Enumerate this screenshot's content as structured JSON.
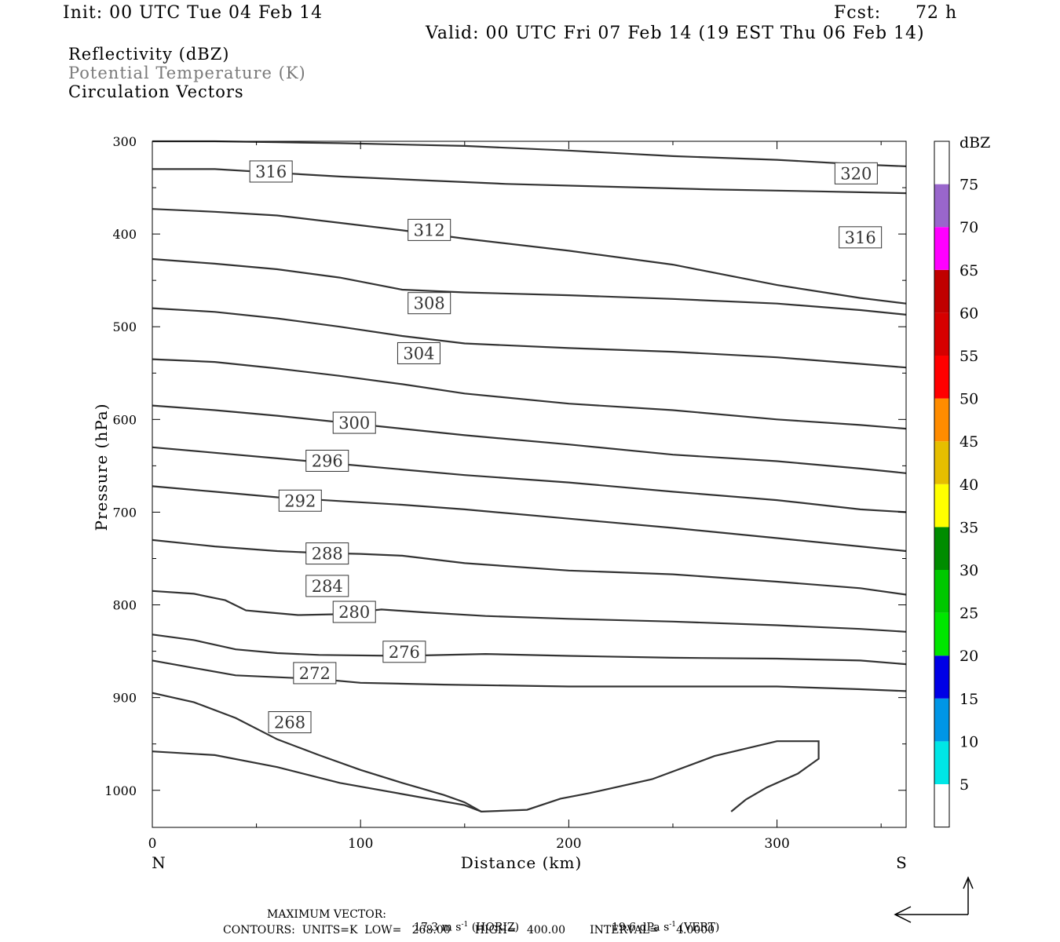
{
  "header": {
    "init": "Init: 00 UTC Tue 04 Feb 14",
    "fcst_label": "Fcst:",
    "fcst_value": "72 h",
    "valid": "Valid: 00 UTC Fri 07 Feb 14 (19 EST Thu 06 Feb 14)"
  },
  "fields": {
    "line1": "Reflectivity (dBZ)",
    "line2": "Potential Temperature (K)",
    "line3": "Circulation Vectors"
  },
  "footer": {
    "max_vector_label": "MAXIMUM VECTOR:",
    "horiz_value": "17.3 m s",
    "horiz_exp": "-1",
    "horiz_tag": "(HORIZ)",
    "vert_value": "19.6 dPa s",
    "vert_exp": "-1",
    "vert_tag": "(VERT)",
    "contours": "CONTOURS:  UNITS=K  LOW=   268.00       HIGH=   400.00       INTERVAL=     4.0000"
  },
  "chart_data": {
    "type": "cross-section contour",
    "xlabel": "Distance (km)",
    "ylabel": "Pressure (hPa)",
    "x_end_labels": {
      "left": "N",
      "right": "S"
    },
    "xlim": [
      0,
      362
    ],
    "ylim_hPa": [
      300,
      1040
    ],
    "x_ticks": [
      0,
      100,
      200,
      300
    ],
    "y_ticks": [
      300,
      400,
      500,
      600,
      700,
      800,
      900,
      1000
    ],
    "isentropes": [
      {
        "theta": 268,
        "label_at": [
          66,
          927
        ],
        "points": [
          [
            0,
            958
          ],
          [
            30,
            962
          ],
          [
            60,
            975
          ],
          [
            90,
            992
          ],
          [
            120,
            1004
          ],
          [
            150,
            1016
          ],
          [
            158,
            1023
          ]
        ]
      },
      {
        "theta": 272,
        "label_at": [
          78,
          874
        ],
        "points": [
          [
            0,
            895
          ],
          [
            20,
            905
          ],
          [
            40,
            922
          ],
          [
            60,
            945
          ],
          [
            80,
            962
          ],
          [
            100,
            978
          ],
          [
            120,
            992
          ],
          [
            140,
            1005
          ],
          [
            150,
            1013
          ],
          [
            158,
            1023
          ],
          [
            180,
            1021
          ],
          [
            196,
            1009
          ],
          [
            210,
            1003
          ],
          [
            240,
            988
          ],
          [
            270,
            963
          ],
          [
            300,
            947
          ],
          [
            320,
            947
          ],
          [
            320,
            966
          ],
          [
            310,
            982
          ],
          [
            295,
            997
          ],
          [
            285,
            1010
          ],
          [
            278,
            1023
          ]
        ]
      },
      {
        "theta": 276,
        "label_at": [
          121,
          851
        ],
        "points": [
          [
            0,
            860
          ],
          [
            20,
            868
          ],
          [
            40,
            876
          ],
          [
            60,
            878
          ],
          [
            80,
            880
          ],
          [
            100,
            884
          ],
          [
            140,
            886
          ],
          [
            200,
            888
          ],
          [
            260,
            888
          ],
          [
            300,
            888
          ],
          [
            340,
            891
          ],
          [
            362,
            893
          ]
        ]
      },
      {
        "theta": 280,
        "label_at": [
          97,
          808
        ],
        "points": [
          [
            0,
            832
          ],
          [
            20,
            838
          ],
          [
            40,
            848
          ],
          [
            60,
            852
          ],
          [
            80,
            854
          ],
          [
            120,
            855
          ],
          [
            160,
            853
          ],
          [
            200,
            855
          ],
          [
            250,
            857
          ],
          [
            300,
            858
          ],
          [
            340,
            860
          ],
          [
            362,
            864
          ]
        ]
      },
      {
        "theta": 284,
        "label_at": [
          84,
          780
        ],
        "points": [
          [
            0,
            785
          ],
          [
            20,
            788
          ],
          [
            35,
            795
          ],
          [
            45,
            806
          ],
          [
            55,
            808
          ],
          [
            70,
            811
          ],
          [
            90,
            810
          ],
          [
            110,
            805
          ],
          [
            130,
            808
          ],
          [
            160,
            812
          ],
          [
            200,
            815
          ],
          [
            250,
            818
          ],
          [
            300,
            822
          ],
          [
            340,
            826
          ],
          [
            362,
            829
          ]
        ]
      },
      {
        "theta": 288,
        "label_at": [
          84,
          745
        ],
        "points": [
          [
            0,
            730
          ],
          [
            30,
            737
          ],
          [
            60,
            742
          ],
          [
            80,
            744
          ],
          [
            100,
            745
          ],
          [
            120,
            747
          ],
          [
            150,
            755
          ],
          [
            200,
            763
          ],
          [
            250,
            767
          ],
          [
            300,
            775
          ],
          [
            340,
            782
          ],
          [
            362,
            789
          ]
        ]
      },
      {
        "theta": 292,
        "label_at": [
          71,
          688
        ],
        "points": [
          [
            0,
            672
          ],
          [
            30,
            678
          ],
          [
            60,
            684
          ],
          [
            90,
            688
          ],
          [
            120,
            692
          ],
          [
            150,
            697
          ],
          [
            200,
            707
          ],
          [
            250,
            717
          ],
          [
            300,
            728
          ],
          [
            340,
            737
          ],
          [
            362,
            742
          ]
        ]
      },
      {
        "theta": 296,
        "label_at": [
          84,
          645
        ],
        "points": [
          [
            0,
            630
          ],
          [
            30,
            636
          ],
          [
            60,
            642
          ],
          [
            90,
            648
          ],
          [
            120,
            654
          ],
          [
            150,
            660
          ],
          [
            200,
            668
          ],
          [
            250,
            678
          ],
          [
            300,
            687
          ],
          [
            340,
            697
          ],
          [
            362,
            700
          ]
        ]
      },
      {
        "theta": 300,
        "label_at": [
          97,
          604
        ],
        "points": [
          [
            0,
            585
          ],
          [
            30,
            590
          ],
          [
            60,
            596
          ],
          [
            90,
            603
          ],
          [
            120,
            610
          ],
          [
            150,
            617
          ],
          [
            200,
            627
          ],
          [
            250,
            638
          ],
          [
            300,
            645
          ],
          [
            340,
            653
          ],
          [
            362,
            658
          ]
        ]
      },
      {
        "theta": 304,
        "label_at": [
          128,
          529
        ],
        "points": [
          [
            0,
            535
          ],
          [
            30,
            538
          ],
          [
            60,
            545
          ],
          [
            90,
            553
          ],
          [
            120,
            562
          ],
          [
            150,
            572
          ],
          [
            200,
            583
          ],
          [
            250,
            590
          ],
          [
            300,
            600
          ],
          [
            340,
            606
          ],
          [
            362,
            610
          ]
        ]
      },
      {
        "theta": 308,
        "label_at": [
          133,
          475
        ],
        "points": [
          [
            0,
            480
          ],
          [
            30,
            484
          ],
          [
            60,
            491
          ],
          [
            90,
            500
          ],
          [
            120,
            510
          ],
          [
            150,
            518
          ],
          [
            200,
            523
          ],
          [
            250,
            527
          ],
          [
            300,
            533
          ],
          [
            340,
            540
          ],
          [
            362,
            544
          ]
        ]
      },
      {
        "theta": 312,
        "label_at": [
          133,
          396
        ],
        "points": [
          [
            0,
            427
          ],
          [
            30,
            432
          ],
          [
            60,
            438
          ],
          [
            90,
            447
          ],
          [
            120,
            460
          ],
          [
            150,
            463
          ],
          [
            200,
            466
          ],
          [
            250,
            470
          ],
          [
            300,
            475
          ],
          [
            340,
            482
          ],
          [
            362,
            487
          ]
        ]
      },
      {
        "theta": 316,
        "label_at": [
          57,
          333
        ],
        "points": [
          [
            0,
            373
          ],
          [
            30,
            376
          ],
          [
            60,
            380
          ],
          [
            90,
            388
          ],
          [
            120,
            396
          ],
          [
            150,
            405
          ],
          [
            200,
            418
          ],
          [
            250,
            433
          ],
          [
            300,
            455
          ],
          [
            340,
            469
          ],
          [
            362,
            475
          ]
        ]
      },
      {
        "theta": 316,
        "label_at": [
          340,
          404
        ],
        "points": [
          [
            0,
            330
          ],
          [
            30,
            330
          ],
          [
            60,
            334
          ],
          [
            90,
            338
          ],
          [
            130,
            342
          ],
          [
            170,
            346
          ],
          [
            220,
            349
          ],
          [
            270,
            352
          ],
          [
            320,
            354
          ],
          [
            362,
            356
          ]
        ]
      },
      {
        "theta": 320,
        "label_at": [
          338,
          335
        ],
        "points": [
          [
            0,
            300
          ],
          [
            30,
            300
          ],
          [
            60,
            301
          ],
          [
            90,
            302
          ],
          [
            150,
            305
          ],
          [
            200,
            310
          ],
          [
            250,
            316
          ],
          [
            300,
            320
          ],
          [
            340,
            325
          ],
          [
            362,
            327
          ]
        ]
      }
    ],
    "colorbar": {
      "title": "dBZ",
      "labels": [
        "5",
        "10",
        "15",
        "20",
        "25",
        "30",
        "35",
        "40",
        "45",
        "50",
        "55",
        "60",
        "65",
        "70",
        "75"
      ],
      "colors": [
        "#ffffff",
        "#00e6e6",
        "#0096e6",
        "#0000e6",
        "#00e600",
        "#00c800",
        "#008c00",
        "#ffff00",
        "#e6be00",
        "#ff8c00",
        "#ff0000",
        "#d60000",
        "#c00000",
        "#ff00ff",
        "#9966cc",
        "#ffffff"
      ]
    }
  }
}
